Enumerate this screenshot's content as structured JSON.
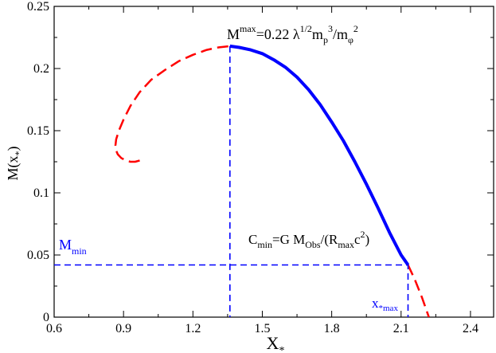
{
  "chart_data": {
    "type": "line",
    "xlabel": "X",
    "xlabel_sub": "*",
    "ylabel": "M(x",
    "ylabel_sub": "*",
    "ylabel_close": ")",
    "xlim": [
      0.6,
      2.5
    ],
    "ylim": [
      0,
      0.25
    ],
    "x_ticks": [
      0.6,
      0.9,
      1.2,
      1.5,
      1.8,
      2.1,
      2.4
    ],
    "x_tick_labels": [
      "0.6",
      "0.9",
      "1.2",
      "1.5",
      "1.8",
      "2.1",
      "2.4"
    ],
    "y_ticks": [
      0,
      0.05,
      0.1,
      0.15,
      0.2,
      0.25
    ],
    "y_tick_labels": [
      "0",
      "0.05",
      "0.1",
      "0.15",
      "0.2",
      "0.25"
    ],
    "grid": false,
    "series": [
      {
        "style": "dashed",
        "color": "#ff0000",
        "x": [
          0.97,
          0.95,
          0.93,
          0.91,
          0.89,
          0.875,
          0.868,
          0.865,
          0.868,
          0.88,
          0.9,
          0.93,
          0.97,
          1.02,
          1.08,
          1.14,
          1.2,
          1.26,
          1.31,
          1.36
        ],
        "y": [
          0.126,
          0.125,
          0.125,
          0.126,
          0.128,
          0.131,
          0.134,
          0.138,
          0.143,
          0.15,
          0.159,
          0.17,
          0.181,
          0.191,
          0.199,
          0.206,
          0.211,
          0.215,
          0.217,
          0.218
        ]
      },
      {
        "style": "solid",
        "color": "#0000ff",
        "x": [
          1.36,
          1.4,
          1.45,
          1.5,
          1.55,
          1.6,
          1.65,
          1.7,
          1.75,
          1.8,
          1.85,
          1.9,
          1.95,
          2.0,
          2.05,
          2.1,
          2.13
        ],
        "y": [
          0.218,
          0.217,
          0.215,
          0.212,
          0.207,
          0.201,
          0.193,
          0.183,
          0.171,
          0.157,
          0.142,
          0.125,
          0.107,
          0.088,
          0.068,
          0.05,
          0.042
        ]
      },
      {
        "style": "dashed",
        "color": "#ff0000",
        "x": [
          2.13,
          2.16,
          2.19,
          2.22
        ],
        "y": [
          0.042,
          0.03,
          0.016,
          0.0
        ]
      }
    ],
    "reference_lines": [
      {
        "color": "#0000ff",
        "style": "dashed",
        "points": [
          [
            0.6,
            0.042
          ],
          [
            2.13,
            0.042
          ],
          [
            2.13,
            0
          ]
        ]
      },
      {
        "color": "#0000ff",
        "style": "dashed",
        "points": [
          [
            1.36,
            0.218
          ],
          [
            1.36,
            0
          ]
        ]
      }
    ],
    "annotations": {
      "mmax": {
        "base": "M",
        "sup": "max",
        "rest": "=0.22 λ",
        "sup2": "1/2",
        "rest2": "m",
        "sub3": "p",
        "sup3": "3",
        "rest3": "/m",
        "sub4": "φ",
        "sup4": "2",
        "color": "#000000"
      },
      "cmin": {
        "base": "C",
        "sub": "min",
        "rest": "=G M",
        "sub2": "Obs",
        "rest2": "/(R",
        "sub3": "max",
        "rest3": "c",
        "sup3": "2",
        "close": ")",
        "color": "#000000"
      },
      "m_min": {
        "base": "M",
        "sub": "min",
        "color": "#0000ff"
      },
      "x_star_max": {
        "base": "x",
        "sub": "*max",
        "color": "#0000ff"
      }
    }
  }
}
